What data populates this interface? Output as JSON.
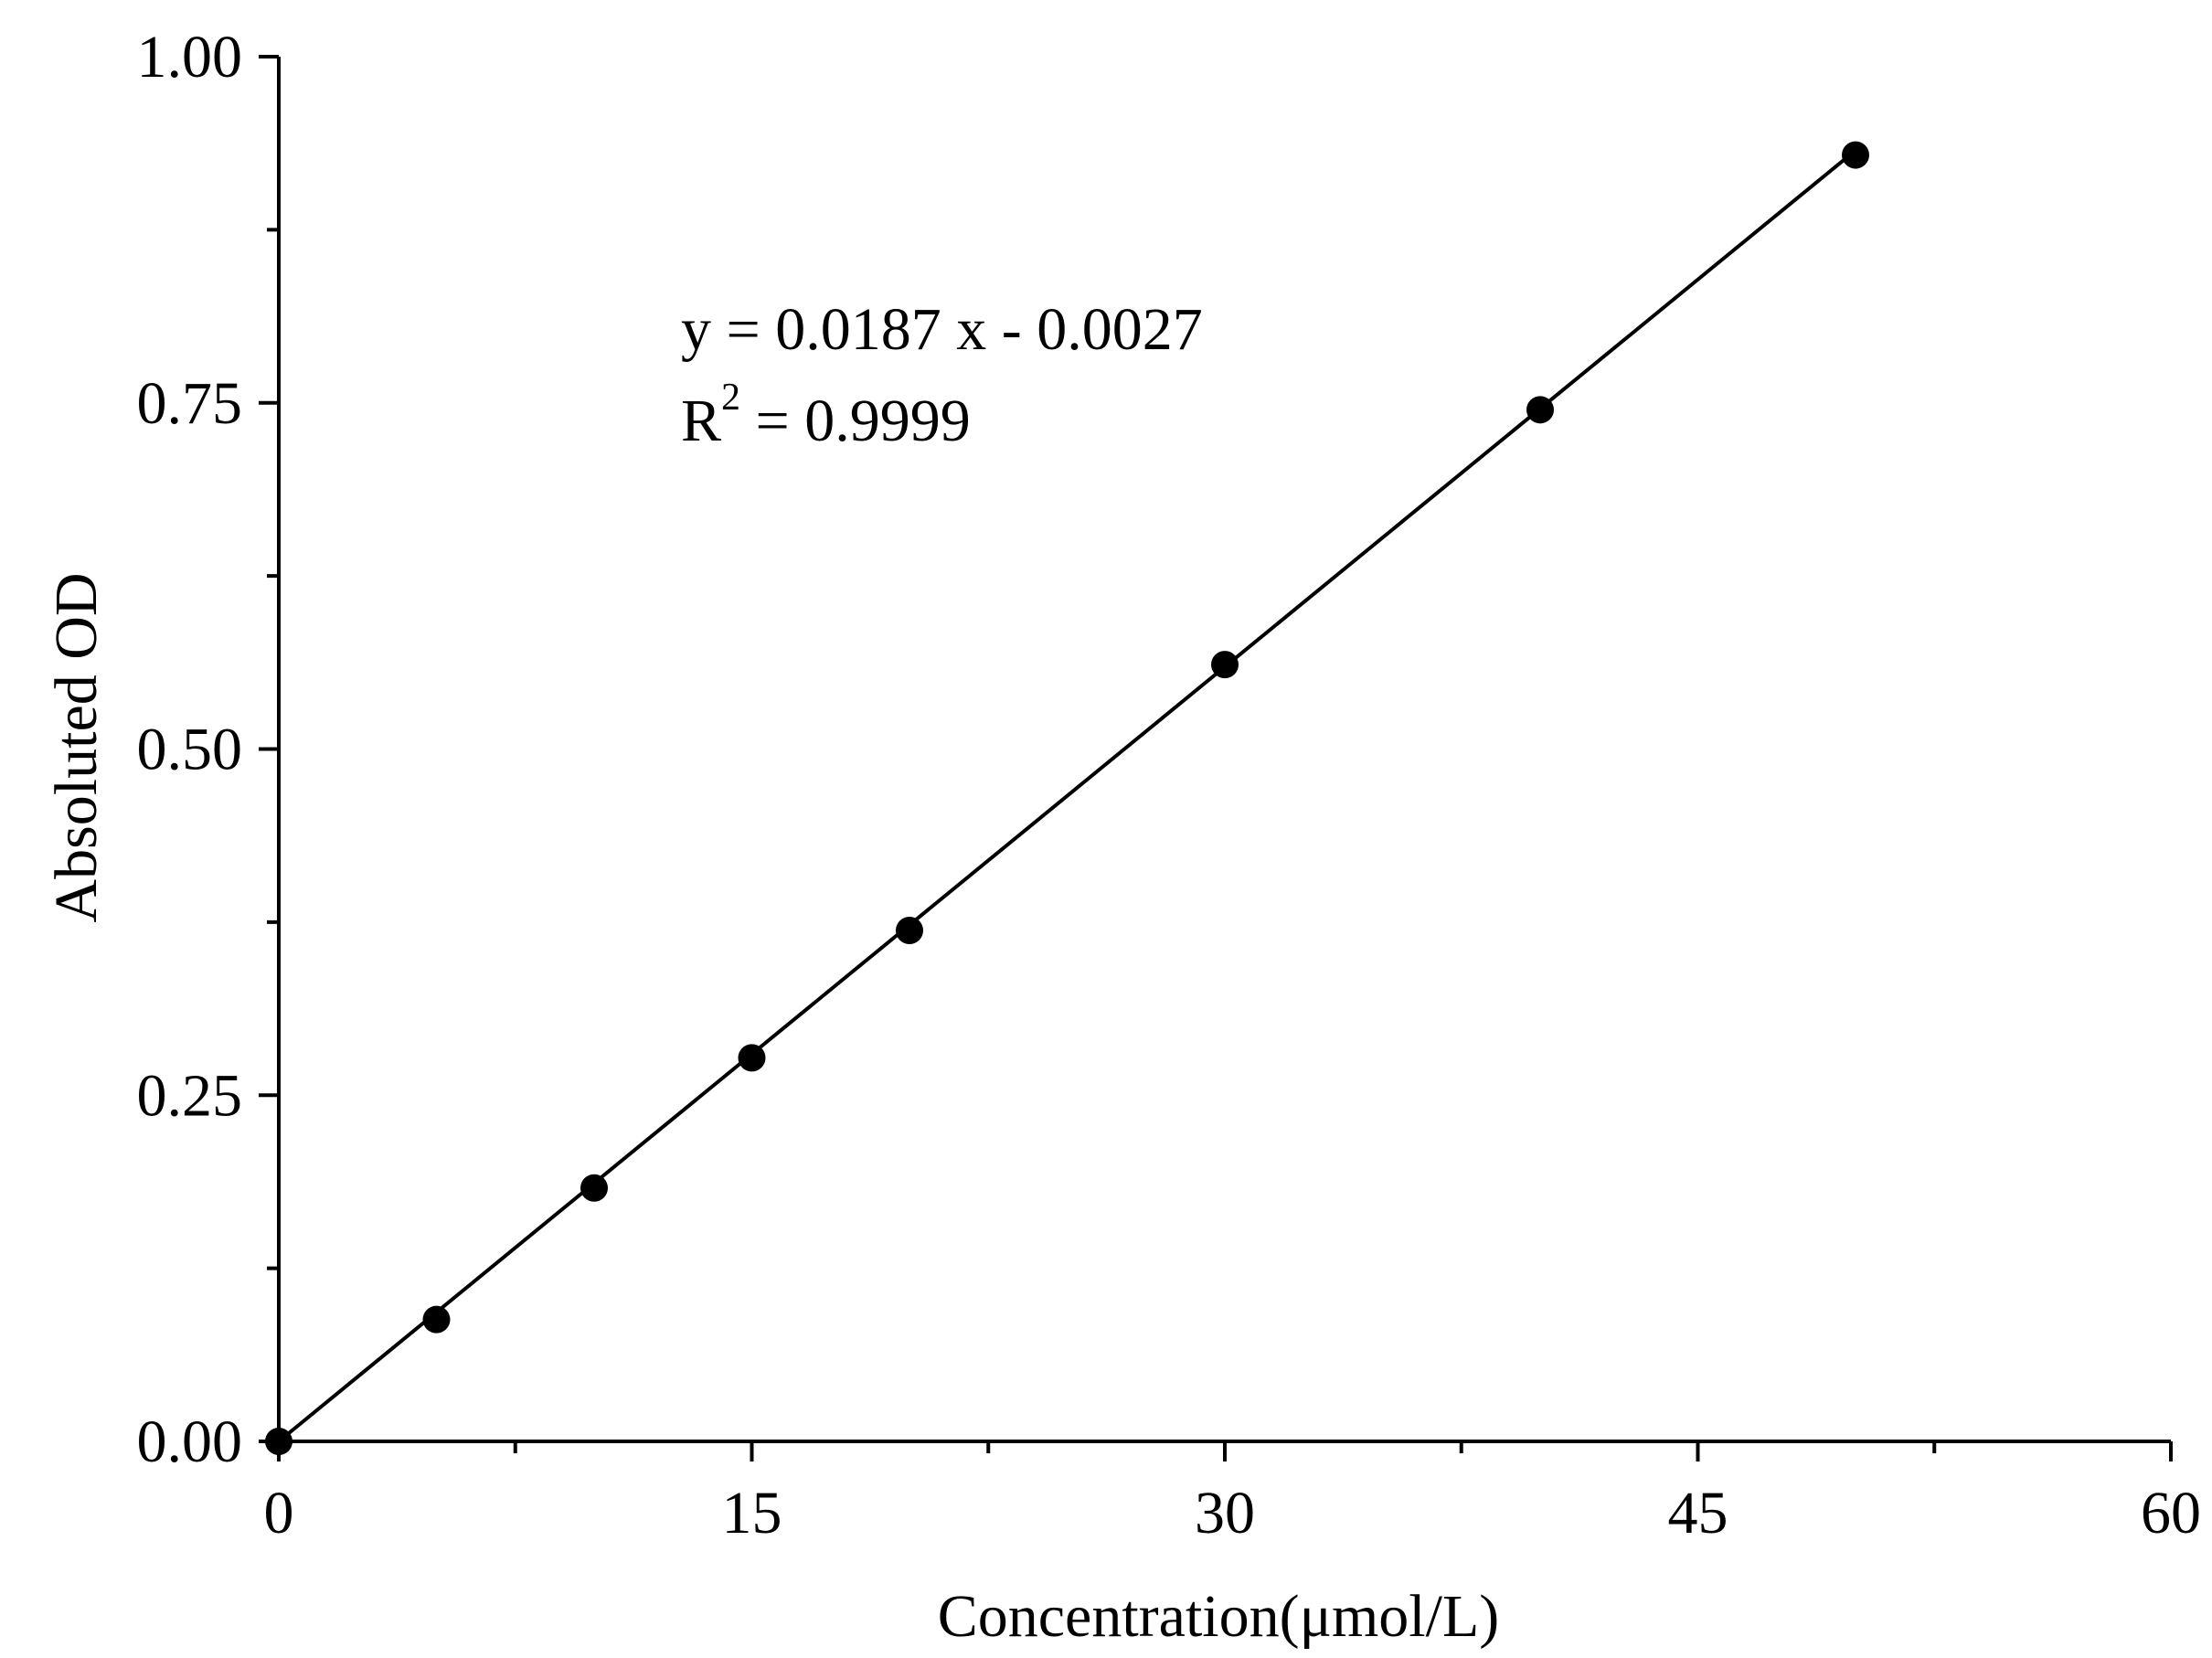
{
  "chart_data": {
    "type": "scatter",
    "title": "",
    "xlabel": "Concentration(μmol/L)",
    "ylabel": "Absoluted OD",
    "xlim": [
      0,
      60
    ],
    "ylim": [
      0,
      1.0
    ],
    "x_ticks": [
      "0",
      "15",
      "30",
      "45",
      "60"
    ],
    "y_ticks": [
      "0.00",
      "0.25",
      "0.50",
      "0.75",
      "1.00"
    ],
    "grid": false,
    "legend": "none",
    "series": [
      {
        "x": [
          0,
          5,
          10,
          15,
          20,
          30,
          40,
          50
        ],
        "y": [
          0.0,
          0.088,
          0.183,
          0.277,
          0.369,
          0.561,
          0.745,
          0.929
        ]
      }
    ],
    "fit_line": {
      "slope": 0.0187,
      "intercept": -0.0027,
      "x_range": [
        0,
        50
      ]
    },
    "annotations": {
      "equation": "y = 0.0187 x - 0.0027",
      "r2_prefix": "R",
      "r2_sup": "2",
      "r2_suffix": " = 0.9999"
    }
  }
}
